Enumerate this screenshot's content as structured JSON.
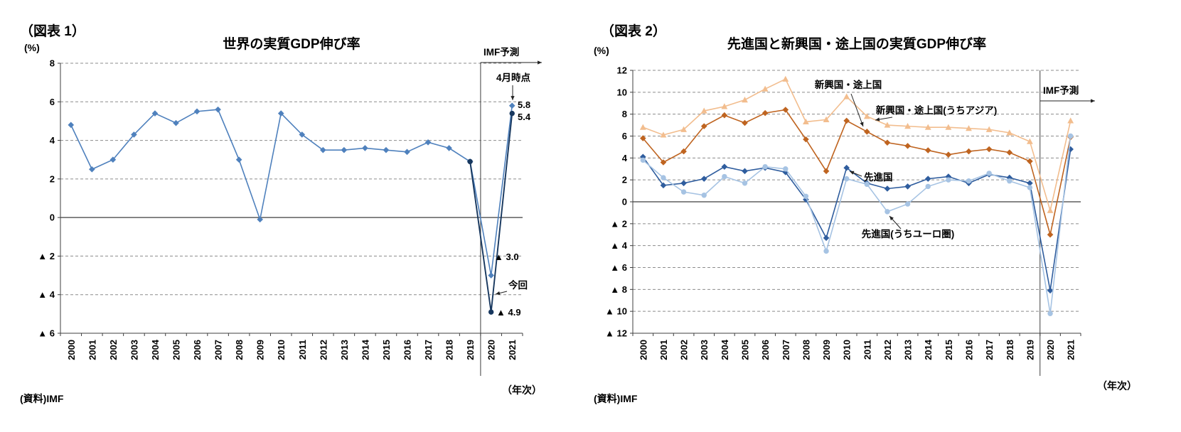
{
  "figures": [
    {
      "caption": "（図表 1）",
      "title": "世界の実質GDP伸び率",
      "y_unit": "(%)",
      "x_unit": "（年次）",
      "source": "(資料)IMF",
      "labels": {
        "forecast": "IMF予測",
        "april": "4月時点",
        "april_2021": "5.8",
        "current_2021": "5.4",
        "april_2020": "▲ 3.0",
        "current": "今回",
        "current_2020": "▲ 4.9"
      }
    },
    {
      "caption": "（図表 2）",
      "title": "先進国と新興国・途上国の実質GDP伸び率",
      "y_unit": "(%)",
      "x_unit": "（年次）",
      "source": "(資料)IMF",
      "labels": {
        "forecast": "IMF予測",
        "emerging": "新興国・途上国",
        "emerging_asia": "新興国・途上国(うちアジア)",
        "advanced": "先進国",
        "advanced_euro": "先進国(うちユーロ圏)"
      }
    }
  ],
  "chart_data": [
    {
      "type": "line",
      "title": "世界の実質GDP伸び率",
      "ylabel": "(%)",
      "xlabel": "年次",
      "ylim": [
        -6,
        8
      ],
      "yticks": [
        8,
        6,
        4,
        2,
        0,
        -2,
        -4,
        -6
      ],
      "negative_tick_prefix": "▲ ",
      "grid": "dashed-horizontal",
      "legend": "none",
      "forecast_divider_after": "2019",
      "categories": [
        "2000",
        "2001",
        "2002",
        "2003",
        "2004",
        "2005",
        "2006",
        "2007",
        "2008",
        "2009",
        "2010",
        "2011",
        "2012",
        "2013",
        "2014",
        "2015",
        "2016",
        "2017",
        "2018",
        "2019",
        "2020",
        "2021"
      ],
      "series": [
        {
          "key": "world-actual",
          "name": "世界の実質GDP伸び率（実績）",
          "color": "#4f81bd",
          "marker": "diamond",
          "width": 1.6,
          "values": [
            4.8,
            2.5,
            3.0,
            4.3,
            5.4,
            4.9,
            5.5,
            5.6,
            3.0,
            -0.1,
            5.4,
            4.3,
            3.5,
            3.5,
            3.6,
            3.5,
            3.4,
            3.9,
            3.6,
            2.9,
            null,
            null
          ]
        },
        {
          "key": "forecast-april",
          "name": "IMF予測（4月時点）",
          "color": "#4f81bd",
          "marker": "diamond",
          "width": 1.6,
          "values": [
            null,
            null,
            null,
            null,
            null,
            null,
            null,
            null,
            null,
            null,
            null,
            null,
            null,
            null,
            null,
            null,
            null,
            null,
            null,
            2.9,
            -3.0,
            5.8
          ]
        },
        {
          "key": "forecast-current",
          "name": "IMF予測（今回）",
          "color": "#17375e",
          "marker": "circle",
          "width": 1.9,
          "values": [
            null,
            null,
            null,
            null,
            null,
            null,
            null,
            null,
            null,
            null,
            null,
            null,
            null,
            null,
            null,
            null,
            null,
            null,
            null,
            2.9,
            -4.9,
            5.4
          ]
        }
      ]
    },
    {
      "type": "line",
      "title": "先進国と新興国・途上国の実質GDP伸び率",
      "ylabel": "(%)",
      "xlabel": "年次",
      "ylim": [
        -12,
        12
      ],
      "yticks": [
        12,
        10,
        8,
        6,
        4,
        2,
        0,
        -2,
        -4,
        -6,
        -8,
        -10,
        -12
      ],
      "negative_tick_prefix": "▲ ",
      "grid": "dashed-horizontal",
      "legend": "none",
      "forecast_divider_after": "2019",
      "categories": [
        "2000",
        "2001",
        "2002",
        "2003",
        "2004",
        "2005",
        "2006",
        "2007",
        "2008",
        "2009",
        "2010",
        "2011",
        "2012",
        "2013",
        "2014",
        "2015",
        "2016",
        "2017",
        "2018",
        "2019",
        "2020",
        "2021"
      ],
      "series": [
        {
          "key": "emerging",
          "name": "新興国・途上国",
          "color": "#bf6420",
          "marker": "diamond",
          "width": 1.6,
          "values": [
            5.8,
            3.6,
            4.6,
            6.9,
            7.9,
            7.2,
            8.1,
            8.4,
            5.7,
            2.8,
            7.4,
            6.4,
            5.4,
            5.1,
            4.7,
            4.3,
            4.6,
            4.8,
            4.5,
            3.7,
            -3.0,
            5.9
          ]
        },
        {
          "key": "emerging-asia",
          "name": "新興国・途上国(うちアジア)",
          "color": "#f2bd8e",
          "marker": "triangle",
          "width": 1.6,
          "values": [
            6.8,
            6.1,
            6.6,
            8.3,
            8.7,
            9.3,
            10.3,
            11.2,
            7.3,
            7.5,
            9.6,
            7.8,
            7.0,
            6.9,
            6.8,
            6.8,
            6.7,
            6.6,
            6.3,
            5.5,
            -0.8,
            7.4
          ]
        },
        {
          "key": "advanced",
          "name": "先進国",
          "color": "#2f5d9e",
          "marker": "diamond",
          "width": 1.6,
          "values": [
            4.1,
            1.5,
            1.7,
            2.1,
            3.2,
            2.8,
            3.1,
            2.7,
            0.2,
            -3.3,
            3.1,
            1.7,
            1.2,
            1.4,
            2.1,
            2.3,
            1.7,
            2.5,
            2.2,
            1.7,
            -8.1,
            4.8
          ]
        },
        {
          "key": "advanced-euro",
          "name": "先進国(うちユーロ圏)",
          "color": "#a6c3e3",
          "marker": "circle",
          "width": 1.6,
          "values": [
            3.8,
            2.2,
            0.9,
            0.6,
            2.3,
            1.7,
            3.2,
            3.0,
            0.5,
            -4.5,
            2.1,
            1.6,
            -0.9,
            -0.2,
            1.4,
            2.0,
            1.9,
            2.6,
            1.9,
            1.3,
            -10.2,
            6.0
          ]
        }
      ]
    }
  ]
}
